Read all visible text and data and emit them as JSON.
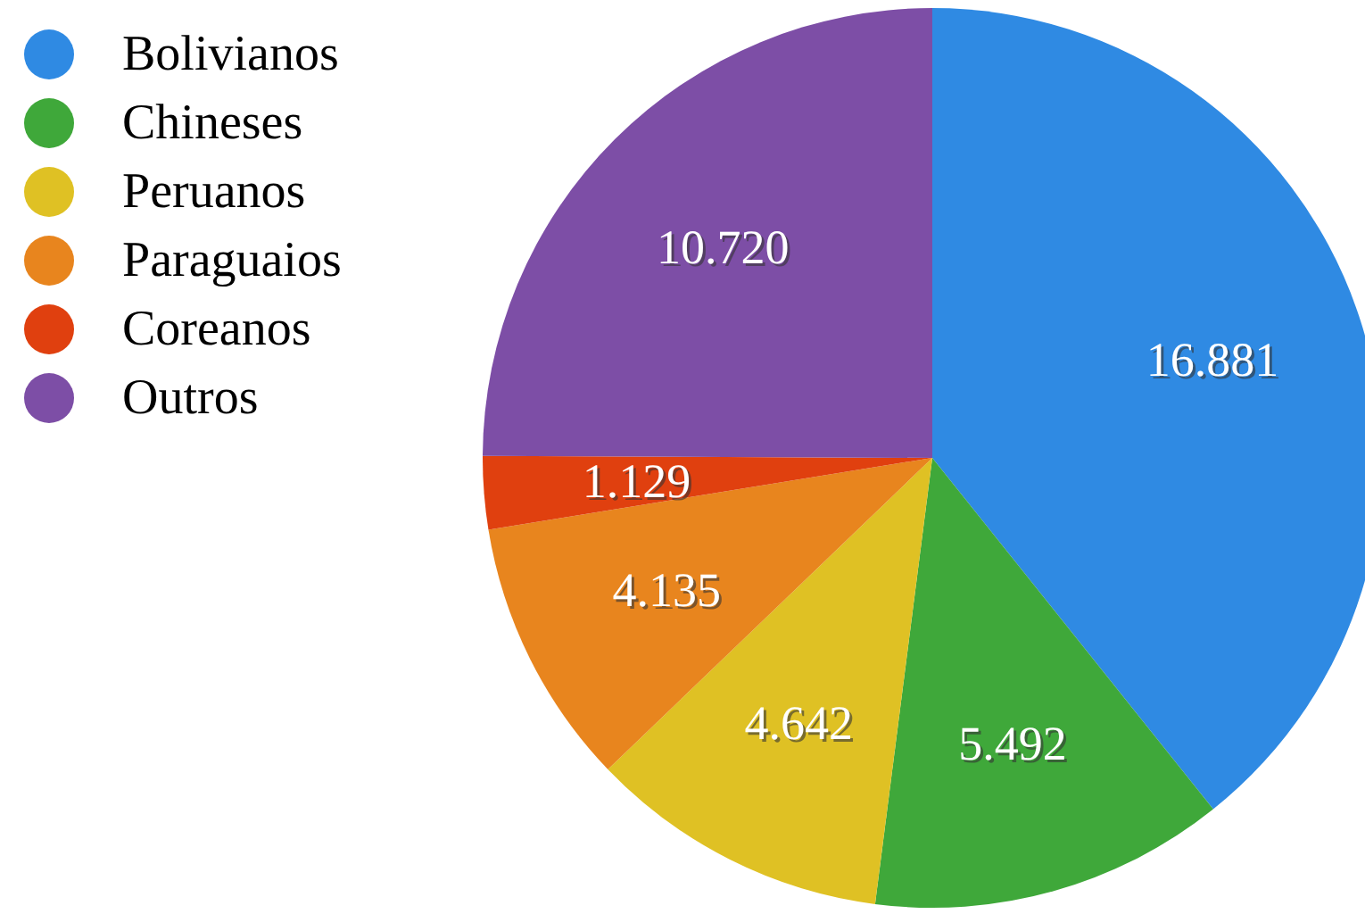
{
  "chart_data": {
    "type": "pie",
    "categories": [
      "Bolivianos",
      "Chineses",
      "Peruanos",
      "Paraguaios",
      "Coreanos",
      "Outros"
    ],
    "values": [
      16881,
      5492,
      4642,
      4135,
      1129,
      10720
    ],
    "value_labels": [
      "16.881",
      "5.492",
      "4.642",
      "4.135",
      "1.129",
      "10.720"
    ],
    "colors": [
      "#2f8ae3",
      "#3fa83a",
      "#dfc124",
      "#e8851e",
      "#e0400f",
      "#7d4ea6"
    ],
    "legend": "top left"
  }
}
